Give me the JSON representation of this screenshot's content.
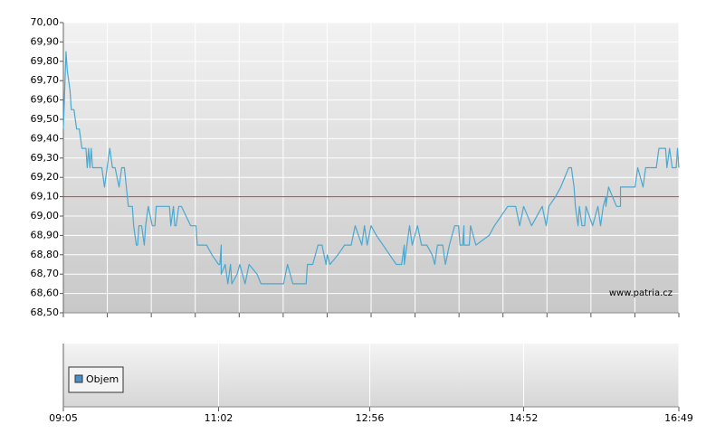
{
  "chart_data": {
    "type": "line",
    "color": "#4aa8d0",
    "ylim": [
      68.5,
      70.0
    ],
    "yticks": [
      {
        "value": 68.5,
        "label": "68,50"
      },
      {
        "value": 68.6,
        "label": "68,60"
      },
      {
        "value": 68.7,
        "label": "68,70"
      },
      {
        "value": 68.8,
        "label": "68,80"
      },
      {
        "value": 68.9,
        "label": "68,90"
      },
      {
        "value": 69.0,
        "label": "69,00"
      },
      {
        "value": 69.1,
        "label": "69,10"
      },
      {
        "value": 69.2,
        "label": "69,20"
      },
      {
        "value": 69.3,
        "label": "69,30"
      },
      {
        "value": 69.4,
        "label": "69,40"
      },
      {
        "value": 69.5,
        "label": "69,50"
      },
      {
        "value": 69.6,
        "label": "69,60"
      },
      {
        "value": 69.7,
        "label": "69,70"
      },
      {
        "value": 69.8,
        "label": "69,80"
      },
      {
        "value": 69.9,
        "label": "69,90"
      },
      {
        "value": 70.0,
        "label": "70,00"
      }
    ],
    "xlim": [
      "09:05",
      "16:49"
    ],
    "xticks": [
      "09:05",
      "11:02",
      "12:56",
      "14:52",
      "16:49"
    ],
    "grid": true,
    "reference_line": {
      "value": 69.1,
      "color": "#e03030"
    },
    "watermark": "www.patria.cz",
    "legend_label": "Objem",
    "legend_color": "#4a90c8",
    "x": [
      "09:05",
      "09:06",
      "09:07",
      "09:08",
      "09:10",
      "09:11",
      "09:13",
      "09:15",
      "09:17",
      "09:19",
      "09:22",
      "09:23",
      "09:24",
      "09:25",
      "09:26",
      "09:27",
      "09:31",
      "09:34",
      "09:36",
      "09:38",
      "09:40",
      "09:42",
      "09:44",
      "09:47",
      "09:49",
      "09:51",
      "09:54",
      "09:57",
      "09:58",
      "10:00",
      "10:01",
      "10:02",
      "10:04",
      "10:06",
      "10:07",
      "10:09",
      "10:12",
      "10:14",
      "10:15",
      "10:22",
      "10:25",
      "10:26",
      "10:28",
      "10:29",
      "10:30",
      "10:32",
      "10:34",
      "10:41",
      "10:43",
      "10:45",
      "10:46",
      "10:53",
      "10:57",
      "11:02",
      "11:03",
      "11:04",
      "11:04",
      "11:07",
      "11:09",
      "11:11",
      "11:12",
      "11:16",
      "11:18",
      "11:20",
      "11:22",
      "11:25",
      "11:31",
      "11:34",
      "11:51",
      "11:54",
      "11:58",
      "12:08",
      "12:09",
      "12:13",
      "12:17",
      "12:20",
      "12:23",
      "12:24",
      "12:26",
      "12:32",
      "12:37",
      "12:39",
      "12:42",
      "12:45",
      "12:50",
      "12:52",
      "12:54",
      "12:57",
      "13:01",
      "13:11",
      "13:16",
      "13:20",
      "13:22",
      "13:22",
      "13:26",
      "13:28",
      "13:30",
      "13:32",
      "13:35",
      "13:39",
      "13:43",
      "13:45",
      "13:47",
      "13:51",
      "13:53",
      "13:56",
      "14:00",
      "14:03",
      "14:04",
      "14:06",
      "14:07",
      "14:07",
      "14:11",
      "14:12",
      "14:16",
      "14:26",
      "14:30",
      "14:35",
      "14:40",
      "14:46",
      "14:49",
      "14:52",
      "14:58",
      "15:06",
      "15:09",
      "15:11",
      "15:16",
      "15:20",
      "15:26",
      "15:28",
      "15:30",
      "15:31",
      "15:33",
      "15:34",
      "15:36",
      "15:38",
      "15:39",
      "15:44",
      "15:48",
      "15:50",
      "15:52",
      "15:54",
      "15:54",
      "15:56",
      "16:02",
      "16:05",
      "16:05",
      "16:16",
      "16:18",
      "16:22",
      "16:24",
      "16:32",
      "16:34",
      "16:39",
      "16:40",
      "16:42",
      "16:44",
      "16:47",
      "16:48",
      "16:49"
    ],
    "values": [
      69.45,
      69.65,
      69.85,
      69.75,
      69.65,
      69.55,
      69.55,
      69.45,
      69.45,
      69.35,
      69.35,
      69.25,
      69.35,
      69.25,
      69.35,
      69.25,
      69.25,
      69.25,
      69.15,
      69.25,
      69.35,
      69.25,
      69.25,
      69.15,
      69.25,
      69.25,
      69.05,
      69.05,
      68.95,
      68.85,
      68.85,
      68.95,
      68.95,
      68.85,
      68.95,
      69.05,
      68.95,
      68.95,
      69.05,
      69.05,
      69.05,
      68.95,
      69.05,
      68.95,
      68.95,
      69.05,
      69.05,
      68.95,
      68.95,
      68.95,
      68.85,
      68.85,
      68.8,
      68.75,
      68.75,
      68.85,
      68.7,
      68.75,
      68.65,
      68.75,
      68.65,
      68.7,
      68.75,
      68.7,
      68.65,
      68.75,
      68.7,
      68.65,
      68.65,
      68.75,
      68.65,
      68.65,
      68.75,
      68.75,
      68.85,
      68.85,
      68.75,
      68.8,
      68.75,
      68.8,
      68.85,
      68.85,
      68.85,
      68.95,
      68.85,
      68.95,
      68.85,
      68.95,
      68.9,
      68.8,
      68.75,
      68.75,
      68.85,
      68.75,
      68.95,
      68.85,
      68.9,
      68.95,
      68.85,
      68.85,
      68.8,
      68.75,
      68.85,
      68.85,
      68.75,
      68.85,
      68.95,
      68.95,
      68.85,
      68.85,
      68.95,
      68.85,
      68.85,
      68.95,
      68.85,
      68.9,
      68.95,
      69.0,
      69.05,
      69.05,
      68.95,
      69.05,
      68.95,
      69.05,
      68.95,
      69.05,
      69.1,
      69.15,
      69.25,
      69.25,
      69.15,
      69.05,
      68.95,
      69.05,
      68.95,
      68.95,
      69.05,
      68.95,
      69.05,
      68.95,
      69.05,
      69.1,
      69.05,
      69.15,
      69.05,
      69.05,
      69.15,
      69.15,
      69.25,
      69.15,
      69.25,
      69.25,
      69.35,
      69.35,
      69.25,
      69.35,
      69.25,
      69.25,
      69.35,
      69.25
    ]
  }
}
